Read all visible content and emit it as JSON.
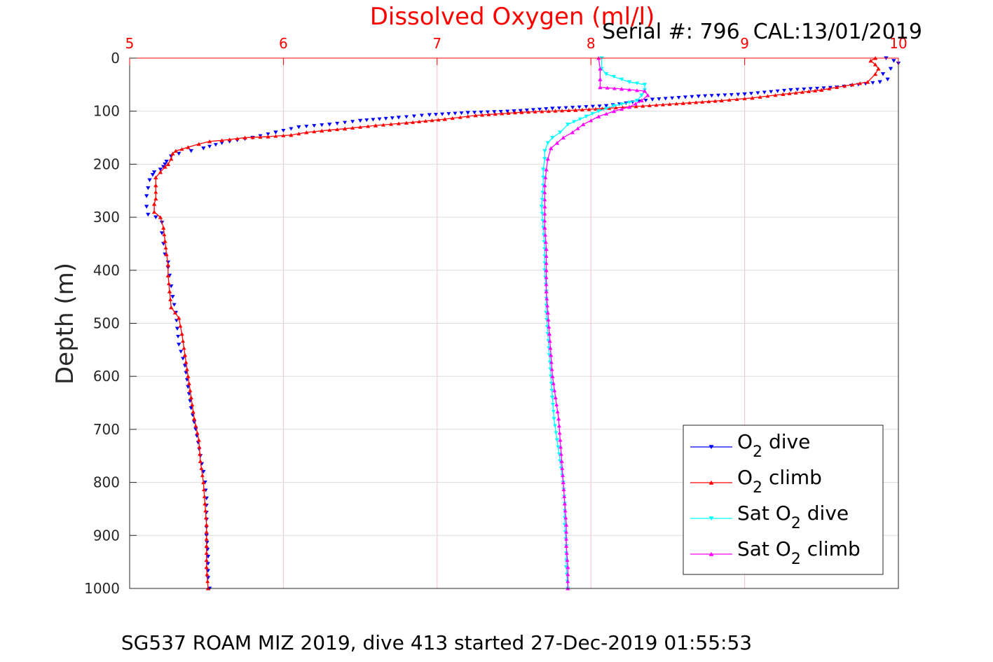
{
  "chart_data": {
    "type": "scatter",
    "title": "Dissolved Oxygen (ml/l)",
    "annotation": "Serial #: 796  CAL:13/01/2019",
    "footer": "SG537 ROAM MIZ 2019, dive 413 started 27-Dec-2019 01:55:53",
    "xlabel": "Dissolved Oxygen (ml/l)",
    "ylabel": "Depth (m)",
    "xlim": [
      5,
      10
    ],
    "ylim": [
      0,
      1000
    ],
    "y_reversed": true,
    "xaxis_location": "top",
    "x_ticks": [
      "5",
      "6",
      "7",
      "8",
      "9",
      "10"
    ],
    "y_ticks": [
      "0",
      "100",
      "200",
      "300",
      "400",
      "500",
      "600",
      "700",
      "800",
      "900",
      "1000"
    ],
    "grid": true,
    "legend_location": "bottom-right",
    "colors": {
      "title": "#ff0000",
      "x_axis": "#ff0000",
      "grid": "#f4c2c8"
    },
    "legend": [
      {
        "base": "O",
        "sub": "2",
        "rest": " dive"
      },
      {
        "base": "O",
        "sub": "2",
        "rest": " climb"
      },
      {
        "base": "Sat O",
        "sub": "2",
        "rest": " dive"
      },
      {
        "base": "Sat O",
        "sub": "2",
        "rest": " climb"
      }
    ],
    "series": [
      {
        "name": "O2 dive",
        "color": "#0000ff",
        "marker": "triangle-down",
        "line": false,
        "points": [
          [
            9.92,
            0
          ],
          [
            9.97,
            5
          ],
          [
            10.0,
            10
          ],
          [
            9.95,
            20
          ],
          [
            9.9,
            30
          ],
          [
            9.93,
            40
          ],
          [
            9.88,
            45
          ],
          [
            9.6,
            55
          ],
          [
            9.3,
            60
          ],
          [
            9.0,
            68
          ],
          [
            8.7,
            72
          ],
          [
            8.4,
            78
          ],
          [
            8.1,
            90
          ],
          [
            7.75,
            95
          ],
          [
            7.5,
            100
          ],
          [
            7.2,
            103
          ],
          [
            6.95,
            107
          ],
          [
            6.75,
            112
          ],
          [
            6.5,
            118
          ],
          [
            6.3,
            125
          ],
          [
            6.1,
            130
          ],
          [
            5.95,
            140
          ],
          [
            5.8,
            150
          ],
          [
            5.6,
            160
          ],
          [
            5.48,
            170
          ],
          [
            5.4,
            175
          ],
          [
            5.32,
            180
          ],
          [
            5.27,
            185
          ],
          [
            5.24,
            195
          ],
          [
            5.23,
            200
          ],
          [
            5.22,
            205
          ],
          [
            5.2,
            210
          ],
          [
            5.16,
            215
          ],
          [
            5.15,
            220
          ],
          [
            5.13,
            230
          ],
          [
            5.12,
            245
          ],
          [
            5.11,
            260
          ],
          [
            5.11,
            280
          ],
          [
            5.12,
            295
          ],
          [
            5.17,
            300
          ],
          [
            5.21,
            310
          ],
          [
            5.21,
            330
          ],
          [
            5.22,
            350
          ],
          [
            5.23,
            370
          ],
          [
            5.25,
            385
          ],
          [
            5.25,
            395
          ],
          [
            5.26,
            410
          ],
          [
            5.27,
            430
          ],
          [
            5.28,
            450
          ],
          [
            5.3,
            480
          ],
          [
            5.31,
            510
          ],
          [
            5.32,
            540
          ],
          [
            5.36,
            580
          ],
          [
            5.38,
            620
          ],
          [
            5.4,
            660
          ],
          [
            5.43,
            700
          ],
          [
            5.46,
            750
          ],
          [
            5.48,
            780
          ],
          [
            5.49,
            800
          ],
          [
            5.5,
            830
          ],
          [
            5.5,
            870
          ],
          [
            5.5,
            900
          ],
          [
            5.51,
            940
          ],
          [
            5.51,
            980
          ],
          [
            5.52,
            1000
          ]
        ]
      },
      {
        "name": "O2 climb",
        "color": "#ff0000",
        "marker": "triangle-up",
        "line": true,
        "points": [
          [
            5.51,
            1000
          ],
          [
            5.5,
            960
          ],
          [
            5.5,
            920
          ],
          [
            5.5,
            880
          ],
          [
            5.49,
            840
          ],
          [
            5.48,
            800
          ],
          [
            5.46,
            760
          ],
          [
            5.45,
            720
          ],
          [
            5.42,
            680
          ],
          [
            5.4,
            640
          ],
          [
            5.38,
            600
          ],
          [
            5.36,
            560
          ],
          [
            5.34,
            520
          ],
          [
            5.32,
            490
          ],
          [
            5.27,
            470
          ],
          [
            5.26,
            440
          ],
          [
            5.25,
            410
          ],
          [
            5.25,
            390
          ],
          [
            5.24,
            370
          ],
          [
            5.23,
            345
          ],
          [
            5.22,
            320
          ],
          [
            5.2,
            300
          ],
          [
            5.16,
            290
          ],
          [
            5.16,
            275
          ],
          [
            5.17,
            265
          ],
          [
            5.17,
            240
          ],
          [
            5.17,
            225
          ],
          [
            5.2,
            215
          ],
          [
            5.23,
            205
          ],
          [
            5.25,
            200
          ],
          [
            5.27,
            190
          ],
          [
            5.28,
            180
          ],
          [
            5.3,
            175
          ],
          [
            5.38,
            168
          ],
          [
            5.45,
            162
          ],
          [
            5.52,
            157
          ],
          [
            5.6,
            155
          ],
          [
            5.75,
            150
          ],
          [
            5.9,
            148
          ],
          [
            6.05,
            145
          ],
          [
            6.15,
            140
          ],
          [
            6.25,
            137
          ],
          [
            6.4,
            133
          ],
          [
            6.6,
            127
          ],
          [
            6.8,
            122
          ],
          [
            7.05,
            115
          ],
          [
            7.25,
            108
          ],
          [
            7.55,
            102
          ],
          [
            7.9,
            98
          ],
          [
            8.25,
            92
          ],
          [
            8.6,
            85
          ],
          [
            8.85,
            80
          ],
          [
            9.05,
            75
          ],
          [
            9.25,
            68
          ],
          [
            9.5,
            60
          ],
          [
            9.7,
            50
          ],
          [
            9.8,
            45
          ],
          [
            9.85,
            30
          ],
          [
            9.87,
            20
          ],
          [
            9.85,
            12
          ],
          [
            9.82,
            5
          ],
          [
            9.85,
            0
          ]
        ]
      },
      {
        "name": "Sat O2 dive",
        "color": "#00ffff",
        "marker": "triangle-down",
        "line": true,
        "points": [
          [
            8.07,
            0
          ],
          [
            8.07,
            20
          ],
          [
            8.1,
            30
          ],
          [
            8.25,
            45
          ],
          [
            8.35,
            50
          ],
          [
            8.35,
            60
          ],
          [
            8.33,
            70
          ],
          [
            8.3,
            80
          ],
          [
            8.15,
            90
          ],
          [
            8.05,
            100
          ],
          [
            7.97,
            110
          ],
          [
            7.85,
            125
          ],
          [
            7.8,
            140
          ],
          [
            7.75,
            150
          ],
          [
            7.72,
            160
          ],
          [
            7.7,
            175
          ],
          [
            7.7,
            190
          ],
          [
            7.69,
            210
          ],
          [
            7.69,
            240
          ],
          [
            7.68,
            280
          ],
          [
            7.69,
            320
          ],
          [
            7.7,
            360
          ],
          [
            7.7,
            400
          ],
          [
            7.71,
            440
          ],
          [
            7.71,
            480
          ],
          [
            7.72,
            520
          ],
          [
            7.73,
            560
          ],
          [
            7.74,
            600
          ],
          [
            7.75,
            640
          ],
          [
            7.76,
            680
          ],
          [
            7.78,
            720
          ],
          [
            7.8,
            760
          ],
          [
            7.82,
            800
          ],
          [
            7.83,
            840
          ],
          [
            7.83,
            880
          ],
          [
            7.84,
            920
          ],
          [
            7.84,
            960
          ],
          [
            7.85,
            1000
          ]
        ]
      },
      {
        "name": "Sat O2 climb",
        "color": "#ff00ff",
        "marker": "triangle-up",
        "line": true,
        "points": [
          [
            7.85,
            1000
          ],
          [
            7.85,
            960
          ],
          [
            7.84,
            920
          ],
          [
            7.84,
            880
          ],
          [
            7.83,
            840
          ],
          [
            7.82,
            800
          ],
          [
            7.81,
            760
          ],
          [
            7.8,
            720
          ],
          [
            7.79,
            680
          ],
          [
            7.77,
            640
          ],
          [
            7.75,
            600
          ],
          [
            7.74,
            560
          ],
          [
            7.73,
            520
          ],
          [
            7.72,
            480
          ],
          [
            7.71,
            440
          ],
          [
            7.71,
            400
          ],
          [
            7.71,
            360
          ],
          [
            7.7,
            320
          ],
          [
            7.7,
            280
          ],
          [
            7.7,
            240
          ],
          [
            7.71,
            210
          ],
          [
            7.72,
            190
          ],
          [
            7.74,
            170
          ],
          [
            7.78,
            160
          ],
          [
            7.82,
            150
          ],
          [
            7.88,
            140
          ],
          [
            7.95,
            125
          ],
          [
            8.05,
            110
          ],
          [
            8.15,
            100
          ],
          [
            8.25,
            92
          ],
          [
            8.33,
            80
          ],
          [
            8.37,
            70
          ],
          [
            8.35,
            62
          ],
          [
            8.2,
            58
          ],
          [
            8.06,
            55
          ],
          [
            8.06,
            40
          ],
          [
            8.06,
            20
          ],
          [
            8.05,
            0
          ]
        ]
      }
    ]
  }
}
